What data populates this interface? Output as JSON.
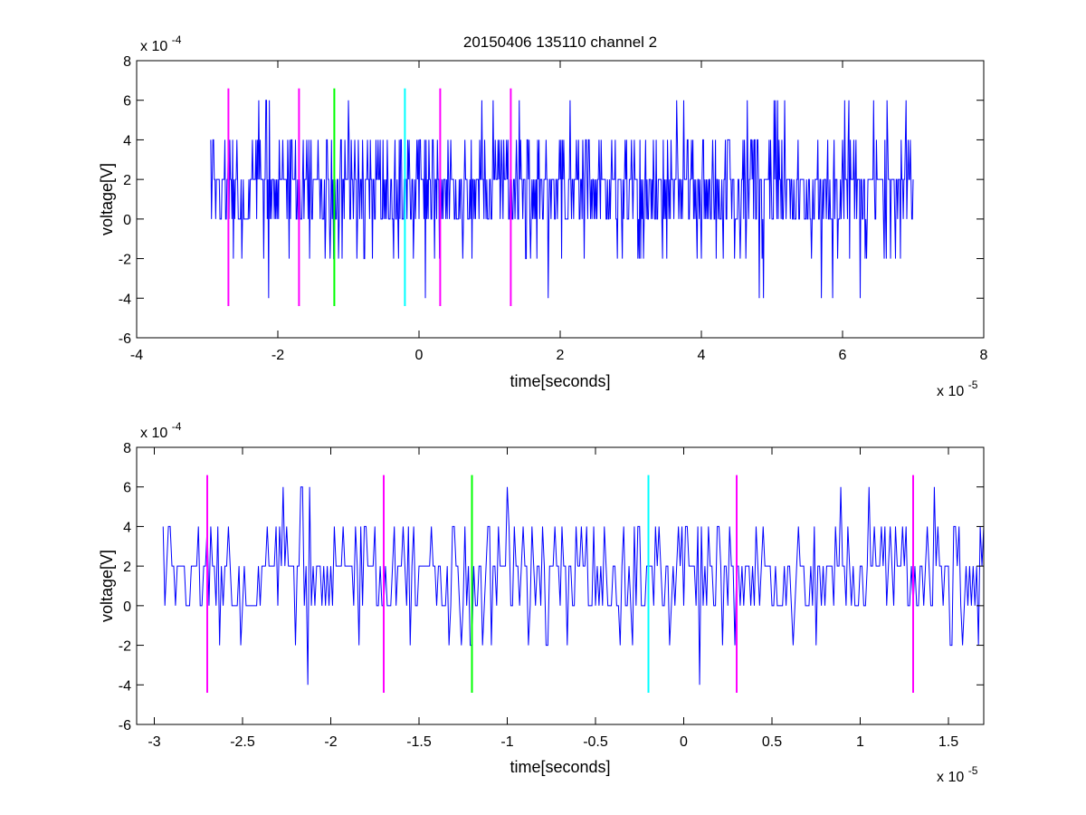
{
  "chart_data": [
    {
      "type": "line",
      "title": "20150406 135110 channel 2",
      "xlabel": "time[seconds]",
      "ylabel": "voltage[V]",
      "x_multiplier_label": "x 10",
      "x_multiplier_exp": "-5",
      "y_multiplier_label": "x 10",
      "y_multiplier_exp": "-4",
      "x_scale": 1e-05,
      "y_scale": 0.0001,
      "xlim": [
        -4e-05,
        8e-05
      ],
      "ylim": [
        -0.0006,
        0.0008
      ],
      "x_ticks": [
        -4e-05,
        -2e-05,
        0,
        2e-05,
        4e-05,
        6e-05,
        8e-05
      ],
      "x_tick_labels": [
        "-4",
        "-2",
        "0",
        "2",
        "4",
        "6",
        "8"
      ],
      "y_ticks": [
        -0.0006,
        -0.0004,
        -0.0002,
        0,
        0.0002,
        0.0004,
        0.0006,
        0.0008
      ],
      "y_tick_labels": [
        "-6",
        "-4",
        "-2",
        "0",
        "2",
        "4",
        "6",
        "8"
      ],
      "grid": false,
      "series": [
        {
          "color": "#0000ff",
          "x_start": -2.95e-05,
          "x_end": 7e-05,
          "sample_step": 1e-07,
          "quantization": 0.0002,
          "levels": [
            0.0002,
            0.0,
            0.0004,
            -0.0002,
            0.0006,
            -0.0004
          ],
          "level_probabilities": [
            0.46,
            0.3,
            0.15,
            0.06,
            0.02,
            0.01
          ],
          "noise_seed": 20150406
        }
      ],
      "markers": [
        {
          "x": -2.7e-05,
          "color": "#ff00ff",
          "y_range": [
            -0.00044,
            0.00066
          ]
        },
        {
          "x": -1.7e-05,
          "color": "#ff00ff",
          "y_range": [
            -0.00044,
            0.00066
          ]
        },
        {
          "x": -1.2e-05,
          "color": "#00ff00",
          "y_range": [
            -0.00044,
            0.00066
          ]
        },
        {
          "x": -2e-06,
          "color": "#00ffff",
          "y_range": [
            -0.00044,
            0.00066
          ]
        },
        {
          "x": 3e-06,
          "color": "#ff00ff",
          "y_range": [
            -0.00044,
            0.00066
          ]
        },
        {
          "x": 1.3e-05,
          "color": "#ff00ff",
          "y_range": [
            -0.00044,
            0.00066
          ]
        }
      ]
    },
    {
      "type": "line",
      "title": "",
      "xlabel": "time[seconds]",
      "ylabel": "voltage[V]",
      "x_multiplier_label": "x 10",
      "x_multiplier_exp": "-5",
      "y_multiplier_label": "x 10",
      "y_multiplier_exp": "-4",
      "x_scale": 1e-05,
      "y_scale": 0.0001,
      "xlim": [
        -3.1e-05,
        1.7e-05
      ],
      "ylim": [
        -0.0006,
        0.0008
      ],
      "x_ticks": [
        -3e-05,
        -2.5e-05,
        -2e-05,
        -1.5e-05,
        -1e-05,
        -5e-06,
        0,
        5e-06,
        1e-05,
        1.5e-05
      ],
      "x_tick_labels": [
        "-3",
        "-2.5",
        "-2",
        "-1.5",
        "-1",
        "-0.5",
        "0",
        "0.5",
        "1",
        "1.5"
      ],
      "y_ticks": [
        -0.0006,
        -0.0004,
        -0.0002,
        0,
        0.0002,
        0.0004,
        0.0006,
        0.0008
      ],
      "y_tick_labels": [
        "-6",
        "-4",
        "-2",
        "0",
        "2",
        "4",
        "6",
        "8"
      ],
      "grid": false,
      "series": [
        {
          "color": "#0000ff",
          "x_start": -2.95e-05,
          "x_end": 1.7e-05,
          "sample_step": 1e-07,
          "quantization": 0.0002,
          "levels": [
            0.0002,
            0.0,
            0.0004,
            -0.0002,
            0.0006,
            -0.0004
          ],
          "level_probabilities": [
            0.46,
            0.3,
            0.15,
            0.06,
            0.02,
            0.01
          ],
          "noise_seed": 20150406
        }
      ],
      "markers": [
        {
          "x": -2.7e-05,
          "color": "#ff00ff",
          "y_range": [
            -0.00044,
            0.00066
          ]
        },
        {
          "x": -1.7e-05,
          "color": "#ff00ff",
          "y_range": [
            -0.00044,
            0.00066
          ]
        },
        {
          "x": -1.2e-05,
          "color": "#00ff00",
          "y_range": [
            -0.00044,
            0.00066
          ]
        },
        {
          "x": -2e-06,
          "color": "#00ffff",
          "y_range": [
            -0.00044,
            0.00066
          ]
        },
        {
          "x": 3e-06,
          "color": "#ff00ff",
          "y_range": [
            -0.00044,
            0.00066
          ]
        },
        {
          "x": 1.3e-05,
          "color": "#ff00ff",
          "y_range": [
            -0.00044,
            0.00066
          ]
        }
      ]
    }
  ]
}
